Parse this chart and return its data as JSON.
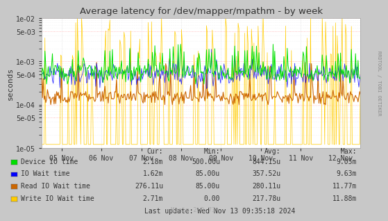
{
  "title": "Average latency for /dev/mapper/mpathm - by week",
  "ylabel": "seconds",
  "right_label": "RRDTOOL / TOBI OETIKER",
  "bg_color": "#c8c8c8",
  "plot_bg_color": "#ffffff",
  "grid_color_major": "#ff9999",
  "grid_color_minor": "#dddddd",
  "ymin": 1e-05,
  "ymax": 0.01,
  "n_days": 8,
  "x_ticks_labels": [
    "05 Nov",
    "06 Nov",
    "07 Nov",
    "08 Nov",
    "09 Nov",
    "10 Nov",
    "11 Nov",
    "12 Nov"
  ],
  "series": [
    {
      "name": "Device IO time",
      "color": "#00e000",
      "lw": 0.8
    },
    {
      "name": "IO Wait time",
      "color": "#0000ff",
      "lw": 0.8
    },
    {
      "name": "Read IO Wait time",
      "color": "#cc6600",
      "lw": 0.8
    },
    {
      "name": "Write IO Wait time",
      "color": "#ffcc00",
      "lw": 0.6
    }
  ],
  "legend_entries": [
    {
      "label": "Device IO time",
      "color": "#00e000",
      "cur": "2.18m",
      "min": "500.00u",
      "avg": "844.15u",
      "max": "9.05m"
    },
    {
      "label": "IO Wait time",
      "color": "#0000ff",
      "cur": "1.62m",
      "min": "85.00u",
      "avg": "357.52u",
      "max": "9.63m"
    },
    {
      "label": "Read IO Wait time",
      "color": "#cc6600",
      "cur": "276.11u",
      "min": "85.00u",
      "avg": "280.11u",
      "max": "11.77m"
    },
    {
      "label": "Write IO Wait time",
      "color": "#ffcc00",
      "cur": "2.71m",
      "min": "0.00",
      "avg": "217.78u",
      "max": "11.88m"
    }
  ],
  "last_update": "Last update: Wed Nov 13 09:35:18 2024",
  "munin_version": "Munin 2.0.73",
  "font_mono": "DejaVu Sans Mono",
  "font_sans": "DejaVu Sans",
  "title_color": "#333333",
  "text_color": "#333333",
  "tick_color": "#333333"
}
